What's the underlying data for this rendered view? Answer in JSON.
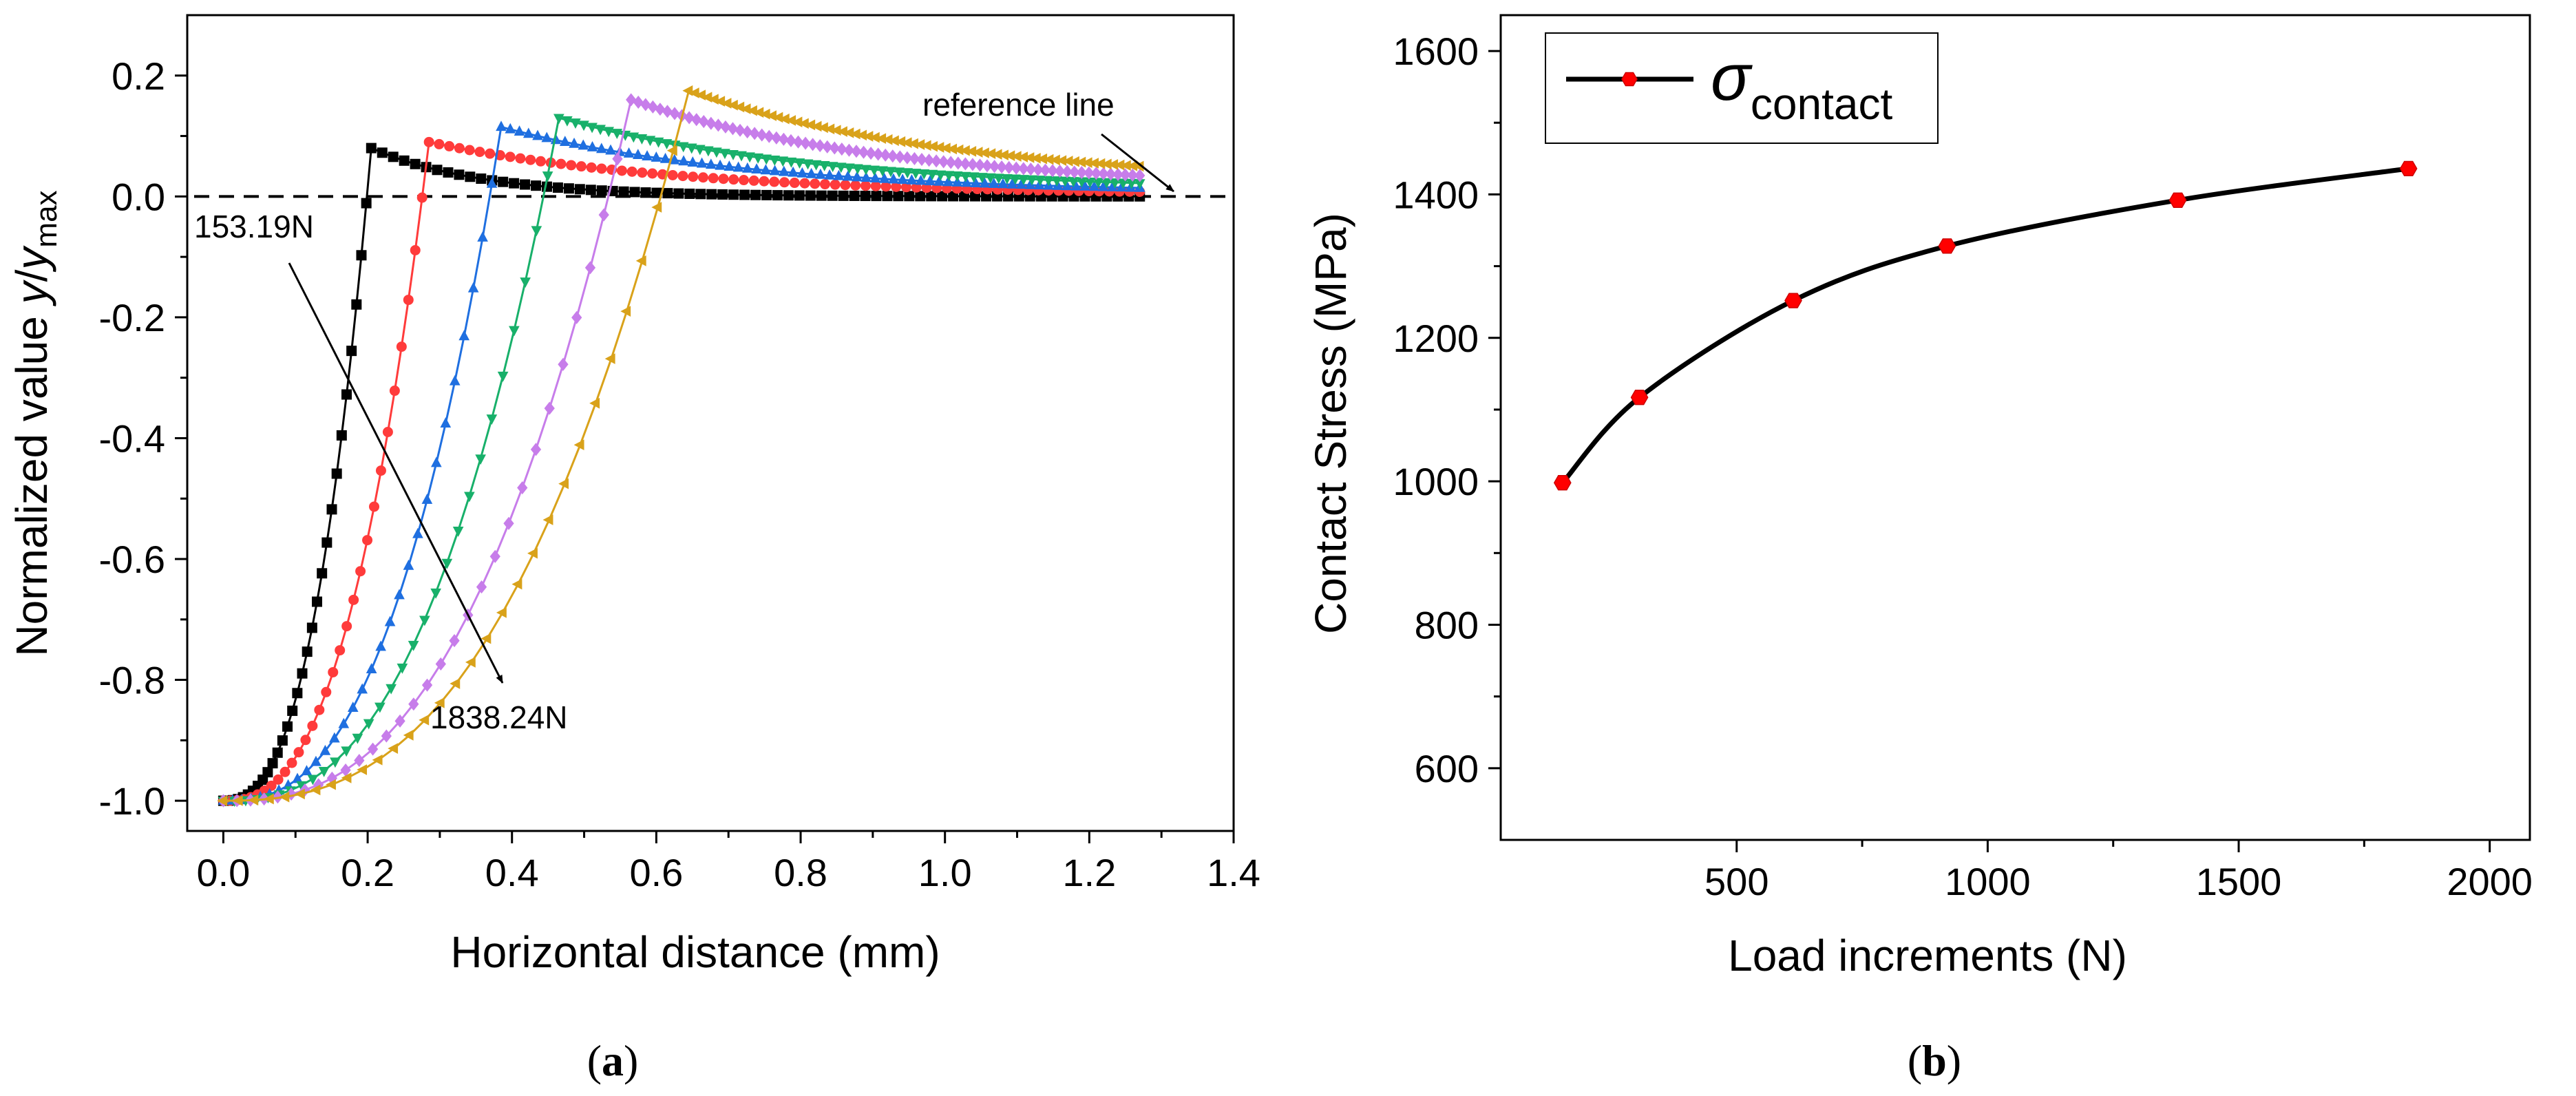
{
  "chart_data": [
    {
      "panel": "(a)",
      "type": "line",
      "title": "",
      "xlabel": "Horizontal distance (mm)",
      "ylabel_parts": [
        "Normalized value ",
        "y",
        "/",
        "y",
        "max"
      ],
      "xlim": [
        -0.05,
        1.4
      ],
      "ylim": [
        -1.05,
        0.3
      ],
      "xticks": [
        0.0,
        0.2,
        0.4,
        0.6,
        0.8,
        1.0,
        1.2,
        1.4
      ],
      "xtick_labels": [
        "0.0",
        "0.2",
        "0.4",
        "0.6",
        "0.8",
        "1.0",
        "1.2",
        "1.4"
      ],
      "yticks": [
        -1.0,
        -0.8,
        -0.6,
        -0.4,
        -0.2,
        0.0,
        0.2
      ],
      "ytick_labels": [
        "-1.0",
        "-0.8",
        "-0.6",
        "-0.4",
        "-0.2",
        "0.0",
        "0.2"
      ],
      "reference_line": {
        "y": 0.0,
        "label": "reference line"
      },
      "annotations": {
        "start_label": "153.19N",
        "end_label": "1838.24N"
      },
      "series": [
        {
          "color": "#000000",
          "marker": "square",
          "x_peak": 0.205,
          "y_peak": 0.08,
          "x_end": 1.27,
          "y_end": 0.0
        },
        {
          "color": "#ff3b3b",
          "marker": "circle",
          "x_peak": 0.285,
          "y_peak": 0.09,
          "x_end": 1.27,
          "y_end": 0.003
        },
        {
          "color": "#1f6fe0",
          "marker": "triangle-up",
          "x_peak": 0.385,
          "y_peak": 0.115,
          "x_end": 1.27,
          "y_end": 0.006
        },
        {
          "color": "#18b06a",
          "marker": "triangle-down",
          "x_peak": 0.465,
          "y_peak": 0.13,
          "x_end": 1.27,
          "y_end": 0.01
        },
        {
          "color": "#c77dea",
          "marker": "diamond",
          "x_peak": 0.565,
          "y_peak": 0.16,
          "x_end": 1.27,
          "y_end": 0.015
        },
        {
          "color": "#d9a21a",
          "marker": "triangle-left",
          "x_peak": 0.645,
          "y_peak": 0.175,
          "x_end": 1.27,
          "y_end": 0.022
        }
      ]
    },
    {
      "panel": "(b)",
      "type": "line",
      "title": "",
      "xlabel": "Load increments (N)",
      "ylabel": "Contact Stress (MPa)",
      "xlim": [
        30,
        2080
      ],
      "ylim": [
        500,
        1650
      ],
      "xticks": [
        500,
        1000,
        1500,
        2000
      ],
      "xtick_labels": [
        "500",
        "1000",
        "1500",
        "2000"
      ],
      "yticks": [
        600,
        800,
        1000,
        1200,
        1400,
        1600
      ],
      "ytick_labels": [
        "600",
        "800",
        "1000",
        "1200",
        "1400",
        "1600"
      ],
      "legend": {
        "symbol": "σ",
        "subscript": "contact",
        "placement": "top-left"
      },
      "series": [
        {
          "name": "σcontact",
          "line_color": "#000000",
          "marker_color": "#ff0000",
          "x": [
            153.19,
            306.38,
            612.76,
            919.14,
            1378.71,
            1838.24
          ],
          "y": [
            998,
            1117,
            1252,
            1328,
            1392,
            1436
          ]
        }
      ]
    }
  ],
  "labels": {
    "panel_a": "a",
    "panel_b": "b"
  }
}
